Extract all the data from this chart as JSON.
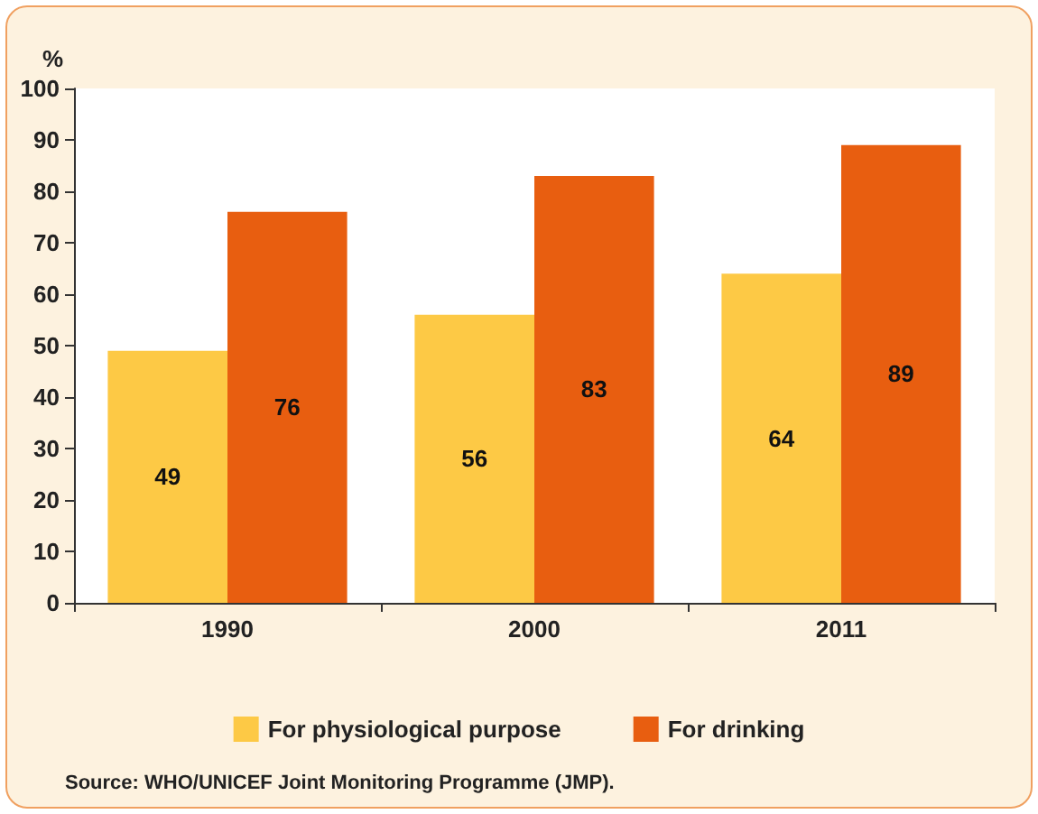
{
  "chart_data": {
    "type": "bar",
    "ylabel": "%",
    "categories": [
      "1990",
      "2000",
      "2011"
    ],
    "series": [
      {
        "name": "For physiological purpose",
        "color": "#fdc945",
        "values": [
          49,
          56,
          64
        ]
      },
      {
        "name": "For drinking",
        "color": "#e85e10",
        "values": [
          76,
          83,
          89
        ]
      }
    ],
    "ylim": [
      0,
      100
    ],
    "yticks": [
      0,
      10,
      20,
      30,
      40,
      50,
      60,
      70,
      80,
      90,
      100
    ],
    "grid": false,
    "legend": "bottom",
    "data_labels": true,
    "annotations": [
      "Source: WHO/UNICEF Joint Monitoring Programme (JMP)."
    ]
  }
}
